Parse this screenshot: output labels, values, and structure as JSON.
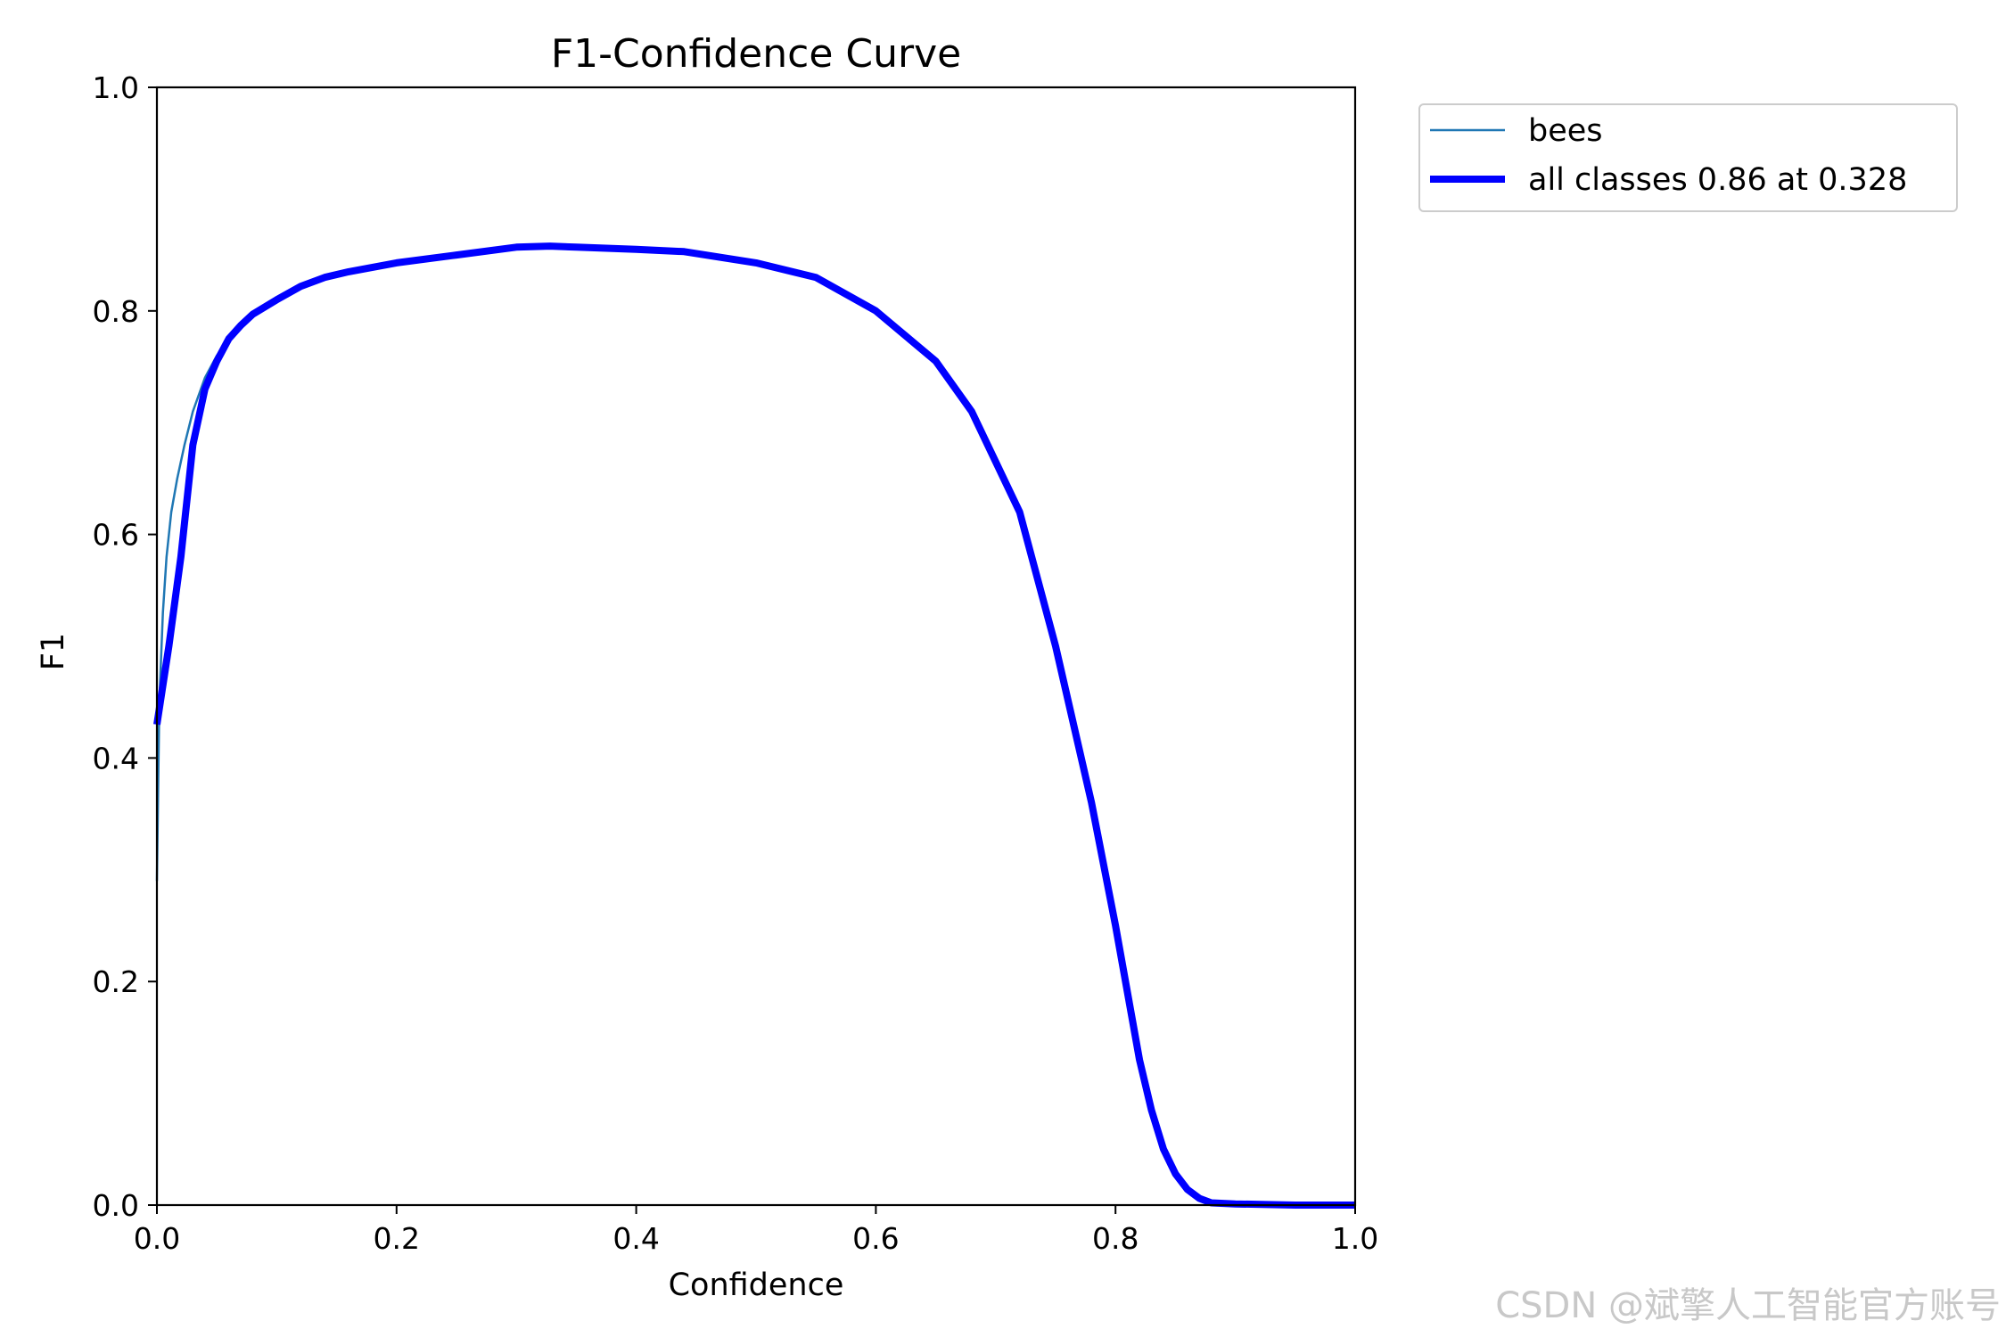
{
  "chart_data": {
    "type": "line",
    "title": "F1-Confidence Curve",
    "xlabel": "Confidence",
    "ylabel": "F1",
    "xlim": [
      0.0,
      1.0
    ],
    "ylim": [
      0.0,
      1.0
    ],
    "xticks": [
      "0.0",
      "0.2",
      "0.4",
      "0.6",
      "0.8",
      "1.0"
    ],
    "yticks": [
      "0.0",
      "0.2",
      "0.4",
      "0.6",
      "0.8",
      "1.0"
    ],
    "grid": false,
    "legend_position": "outside-top-right",
    "series": [
      {
        "name": "bees",
        "color": "#1f77b4",
        "points": [
          [
            0.0,
            0.29
          ],
          [
            0.002,
            0.45
          ],
          [
            0.005,
            0.53
          ],
          [
            0.008,
            0.58
          ],
          [
            0.012,
            0.62
          ],
          [
            0.017,
            0.65
          ],
          [
            0.023,
            0.68
          ],
          [
            0.03,
            0.71
          ],
          [
            0.04,
            0.74
          ],
          [
            0.05,
            0.76
          ],
          [
            0.06,
            0.775
          ],
          [
            0.07,
            0.785
          ],
          [
            0.08,
            0.795
          ],
          [
            0.1,
            0.81
          ],
          [
            0.12,
            0.822
          ],
          [
            0.14,
            0.83
          ],
          [
            0.16,
            0.835
          ],
          [
            0.2,
            0.843
          ],
          [
            0.25,
            0.85
          ],
          [
            0.3,
            0.857
          ],
          [
            0.328,
            0.858
          ],
          [
            0.35,
            0.857
          ],
          [
            0.4,
            0.855
          ],
          [
            0.44,
            0.853
          ],
          [
            0.5,
            0.843
          ],
          [
            0.55,
            0.83
          ],
          [
            0.6,
            0.8
          ],
          [
            0.65,
            0.755
          ],
          [
            0.68,
            0.71
          ],
          [
            0.72,
            0.62
          ],
          [
            0.75,
            0.5
          ],
          [
            0.78,
            0.36
          ],
          [
            0.8,
            0.25
          ],
          [
            0.82,
            0.13
          ],
          [
            0.83,
            0.08
          ],
          [
            0.84,
            0.05
          ],
          [
            0.85,
            0.03
          ],
          [
            0.86,
            0.015
          ],
          [
            0.87,
            0.007
          ],
          [
            0.88,
            0.003
          ],
          [
            0.9,
            0.001
          ],
          [
            0.95,
            0.0
          ],
          [
            1.0,
            0.0
          ]
        ]
      },
      {
        "name": "all classes 0.86 at 0.328",
        "color": "#0000ff",
        "points": [
          [
            0.0,
            0.43
          ],
          [
            0.01,
            0.5
          ],
          [
            0.02,
            0.58
          ],
          [
            0.03,
            0.68
          ],
          [
            0.04,
            0.73
          ],
          [
            0.05,
            0.755
          ],
          [
            0.06,
            0.775
          ],
          [
            0.07,
            0.787
          ],
          [
            0.08,
            0.797
          ],
          [
            0.1,
            0.81
          ],
          [
            0.12,
            0.822
          ],
          [
            0.14,
            0.83
          ],
          [
            0.16,
            0.835
          ],
          [
            0.2,
            0.843
          ],
          [
            0.25,
            0.85
          ],
          [
            0.3,
            0.857
          ],
          [
            0.328,
            0.858
          ],
          [
            0.35,
            0.857
          ],
          [
            0.4,
            0.855
          ],
          [
            0.44,
            0.853
          ],
          [
            0.5,
            0.843
          ],
          [
            0.55,
            0.83
          ],
          [
            0.6,
            0.8
          ],
          [
            0.65,
            0.755
          ],
          [
            0.68,
            0.71
          ],
          [
            0.72,
            0.62
          ],
          [
            0.75,
            0.5
          ],
          [
            0.78,
            0.36
          ],
          [
            0.8,
            0.25
          ],
          [
            0.82,
            0.13
          ],
          [
            0.83,
            0.085
          ],
          [
            0.84,
            0.05
          ],
          [
            0.85,
            0.028
          ],
          [
            0.86,
            0.014
          ],
          [
            0.87,
            0.006
          ],
          [
            0.88,
            0.002
          ],
          [
            0.9,
            0.001
          ],
          [
            0.95,
            0.0
          ],
          [
            1.0,
            0.0
          ]
        ]
      }
    ]
  },
  "watermark": "CSDN @斌擎人工智能官方账号"
}
